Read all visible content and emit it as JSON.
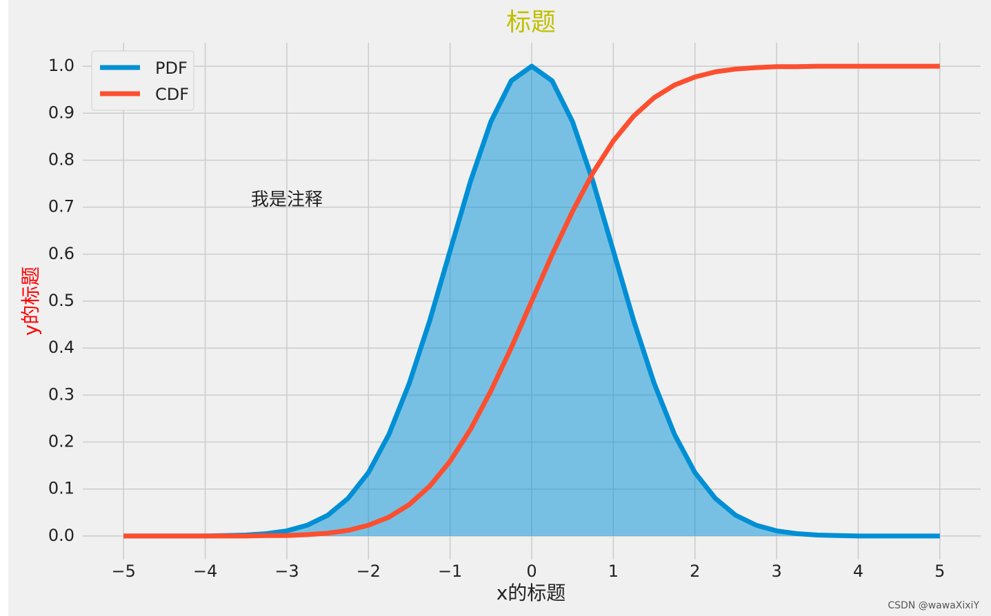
{
  "chart_data": {
    "type": "line",
    "title": "标题",
    "x_label": "x的标题",
    "y_label": "y的标题",
    "annotation": "我是注释",
    "watermark": "CSDN @wawaXixiY",
    "x": [
      -5,
      -4.75,
      -4.5,
      -4.25,
      -4,
      -3.75,
      -3.5,
      -3.25,
      -3,
      -2.75,
      -2.5,
      -2.25,
      -2,
      -1.75,
      -1.5,
      -1.25,
      -1,
      -0.75,
      -0.5,
      -0.25,
      0,
      0.25,
      0.5,
      0.75,
      1,
      1.25,
      1.5,
      1.75,
      2,
      2.25,
      2.5,
      2.75,
      3,
      3.25,
      3.5,
      3.75,
      4,
      4.25,
      4.5,
      4.75,
      5
    ],
    "series": [
      {
        "name": "PDF",
        "color": "#008fd5",
        "fill": true,
        "values": [
          0,
          0,
          0,
          0,
          0,
          0.001,
          0.002,
          0.005,
          0.011,
          0.023,
          0.044,
          0.08,
          0.135,
          0.216,
          0.325,
          0.458,
          0.607,
          0.755,
          0.882,
          0.969,
          1,
          0.969,
          0.882,
          0.755,
          0.607,
          0.458,
          0.325,
          0.216,
          0.135,
          0.08,
          0.044,
          0.023,
          0.011,
          0.005,
          0.002,
          0.001,
          0,
          0,
          0,
          0,
          0
        ]
      },
      {
        "name": "CDF",
        "color": "#fc4f30",
        "values": [
          0,
          0,
          0,
          0,
          0,
          0,
          0,
          0.001,
          0.001,
          0.003,
          0.006,
          0.012,
          0.023,
          0.04,
          0.067,
          0.106,
          0.159,
          0.227,
          0.309,
          0.401,
          0.5,
          0.599,
          0.691,
          0.773,
          0.841,
          0.894,
          0.933,
          0.96,
          0.977,
          0.988,
          0.994,
          0.997,
          0.999,
          0.999,
          1,
          1,
          1,
          1,
          1,
          1,
          1
        ]
      }
    ],
    "xlim": [
      -5.5,
      5.5
    ],
    "ylim": [
      -0.05,
      1.05
    ],
    "xticks": [
      {
        "value": -5,
        "label": "−5"
      },
      {
        "value": -4,
        "label": "−4"
      },
      {
        "value": -3,
        "label": "−3"
      },
      {
        "value": -2,
        "label": "−2"
      },
      {
        "value": -1,
        "label": "−1"
      },
      0,
      1,
      2,
      3,
      4,
      5
    ],
    "yticks": [
      {
        "value": 0,
        "label": "0.0"
      },
      0.1,
      0.2,
      0.3,
      0.4,
      0.5,
      0.6,
      0.7,
      0.8,
      0.9,
      {
        "value": 1,
        "label": "1.0"
      }
    ],
    "grid": true,
    "legend": "upper left",
    "title_color": "#bfbf00",
    "y_label_color": "#ff0000"
  }
}
